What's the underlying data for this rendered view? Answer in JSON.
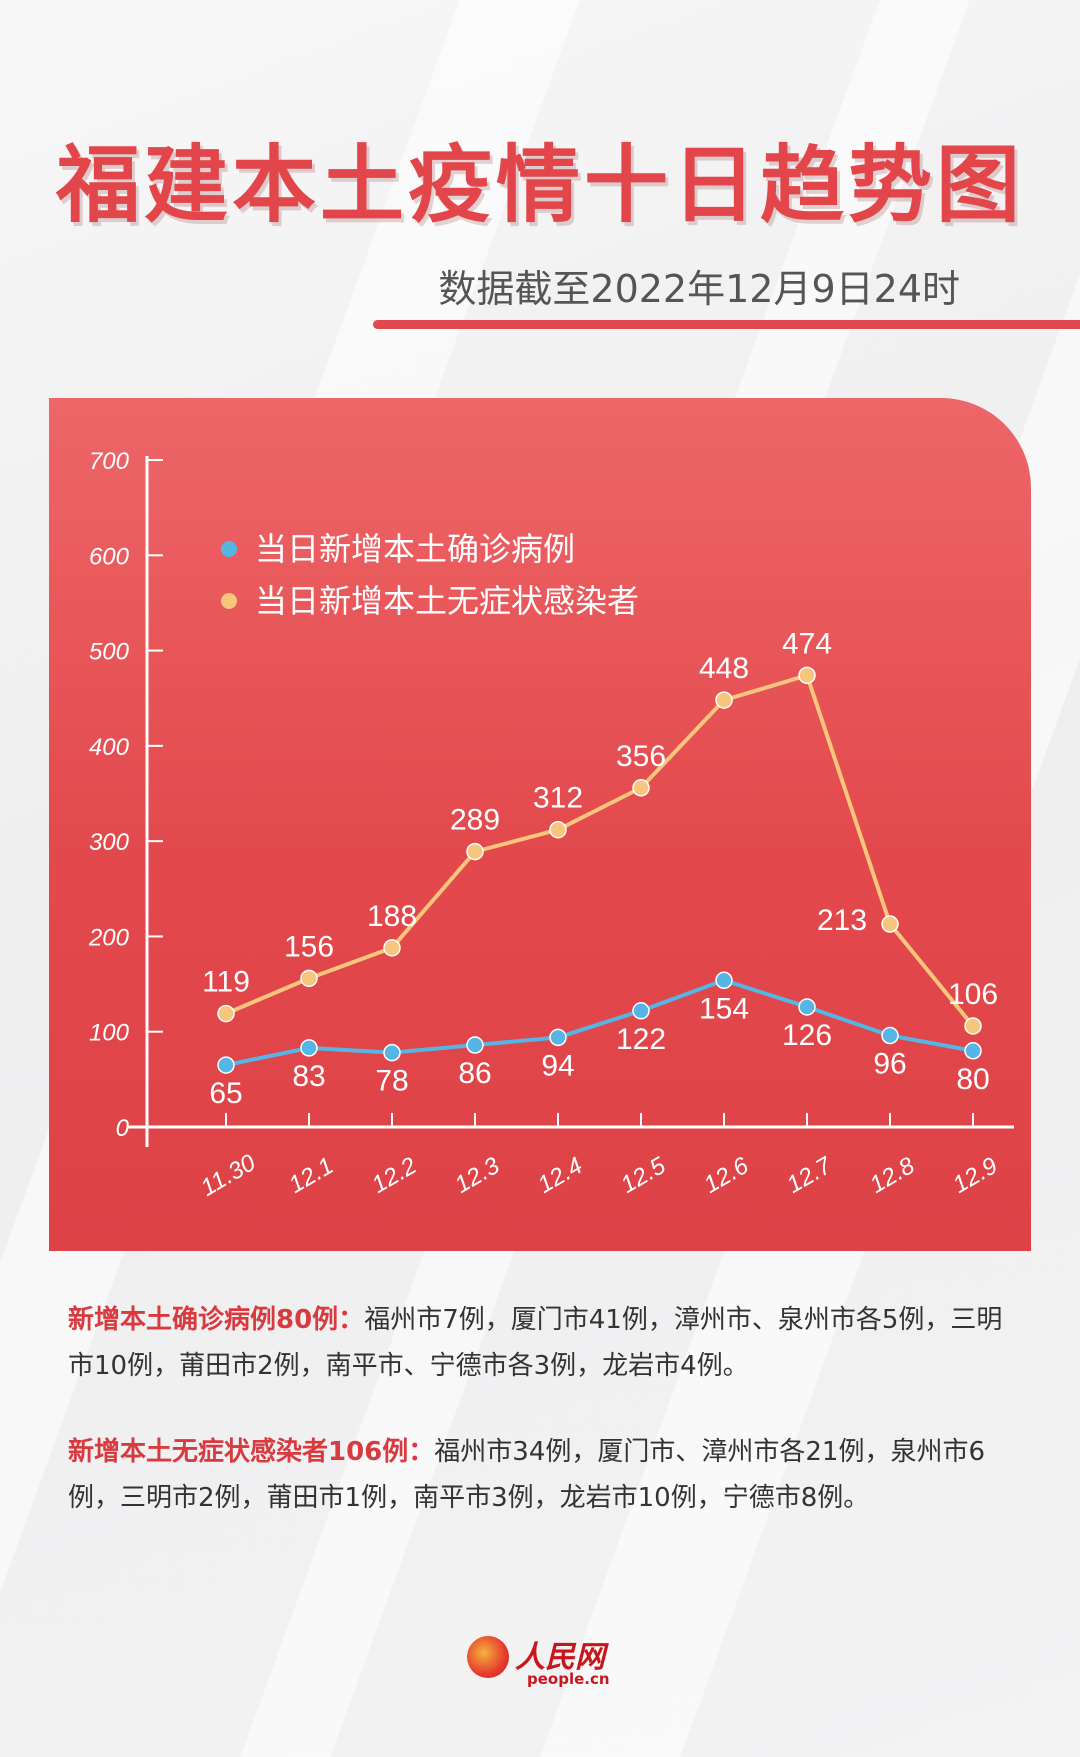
{
  "title": "福建本土疫情十日趋势图",
  "subtitle": "数据截至2022年12月9日24时",
  "colors": {
    "title": "#e2454a",
    "panel": "#e2484c",
    "series_confirmed": "#55b6e6",
    "series_asymptomatic": "#f8c57c"
  },
  "chart_data": {
    "type": "line",
    "categories": [
      "11.30",
      "12.1",
      "12.2",
      "12.3",
      "12.4",
      "12.5",
      "12.6",
      "12.7",
      "12.8",
      "12.9"
    ],
    "series": [
      {
        "name": "当日新增本土确诊病例",
        "values": [
          65,
          83,
          78,
          86,
          94,
          122,
          154,
          126,
          96,
          80
        ]
      },
      {
        "name": "当日新增本土无症状感染者",
        "values": [
          119,
          156,
          188,
          289,
          312,
          356,
          448,
          474,
          213,
          106
        ]
      }
    ],
    "y_ticks": [
      "0",
      "100",
      "200",
      "300",
      "400",
      "500",
      "600",
      "700"
    ],
    "ylim": [
      0,
      700
    ],
    "grid": false,
    "legend_position": "top-left",
    "data_labels": true
  },
  "notes": {
    "confirmed_label": "新增本土确诊病例80例：",
    "confirmed_text": "福州市7例，厦门市41例，漳州市、泉州市各5例，三明市10例，莆田市2例，南平市、宁德市各3例，龙岩市4例。",
    "asymptomatic_label": "新增本土无症状感染者106例：",
    "asymptomatic_text": "福州市34例，厦门市、漳州市各21例，泉州市6例，三明市2例，莆田市1例，南平市3例，龙岩市10例，宁德市8例。"
  },
  "logo": {
    "name": "人民网",
    "url_text": "people.cn"
  }
}
